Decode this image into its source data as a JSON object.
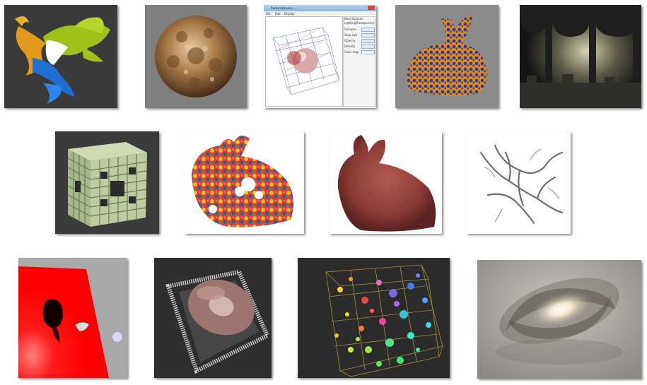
{
  "gallery": {
    "rows": [
      {
        "tiles": [
          {
            "id": "dragon",
            "subject": "Rainbow-shaded dragon volume render",
            "bg": "#3a3a3a"
          },
          {
            "id": "mandelbulb",
            "subject": "Bronze mandelbulb fractal",
            "bg": "#7f7f7f"
          },
          {
            "id": "app-window",
            "subject": "Volume render app window screenshot",
            "bg": "#ffffff"
          },
          {
            "id": "bunny-blue",
            "subject": "Orange and blue textured bunny",
            "bg": "#8a8a8a"
          },
          {
            "id": "crypt",
            "subject": "Dim vaulted crypt with arches",
            "bg": "#222222"
          }
        ]
      },
      {
        "tiles": [
          {
            "id": "menger",
            "subject": "Green Menger sponge cube",
            "bg": "#3b3b3b"
          },
          {
            "id": "bunny-noise",
            "subject": "Colorful noise-textured bunny",
            "bg": "#ffffff"
          },
          {
            "id": "bunny-fur",
            "subject": "Furry red bunny",
            "bg": "#ffffff"
          },
          {
            "id": "vessels",
            "subject": "Grey vessel tree volume",
            "bg": "#ffffff"
          }
        ]
      },
      {
        "tiles": [
          {
            "id": "shadow-plane",
            "subject": "Red plane with soft shadow",
            "bg": "#a8a8a8"
          },
          {
            "id": "point-cloud",
            "subject": "Point cloud terrain",
            "bg": "#2e2e2e"
          },
          {
            "id": "spheres",
            "subject": "Colored spheres in a grid box",
            "bg": "#2b2b2b"
          },
          {
            "id": "galaxy",
            "subject": "Spiral galaxy volume",
            "bg": "#9c9a94"
          }
        ]
      }
    ]
  },
  "app_window": {
    "title": "RadiumVolume - ...",
    "menu": [
      "File",
      "Edit",
      "Display"
    ],
    "panel_title": "Base Options",
    "tabs": [
      "Lighting",
      "Transparency"
    ],
    "labels": [
      "Samples",
      "Step size",
      "Opacity",
      "Density",
      "Color map"
    ]
  },
  "colors": {
    "dragon_green": "#9ec21a",
    "dragon_blue": "#1e6fd0",
    "dragon_orange": "#e39a1a",
    "bronze": "#a97a4a",
    "bunny_orange": "#e08a20",
    "bunny_blue": "#2e3f9a",
    "menger_green": "#b8c99a",
    "fur_red": "#8a3a34",
    "plane_red": "#ff0000"
  }
}
